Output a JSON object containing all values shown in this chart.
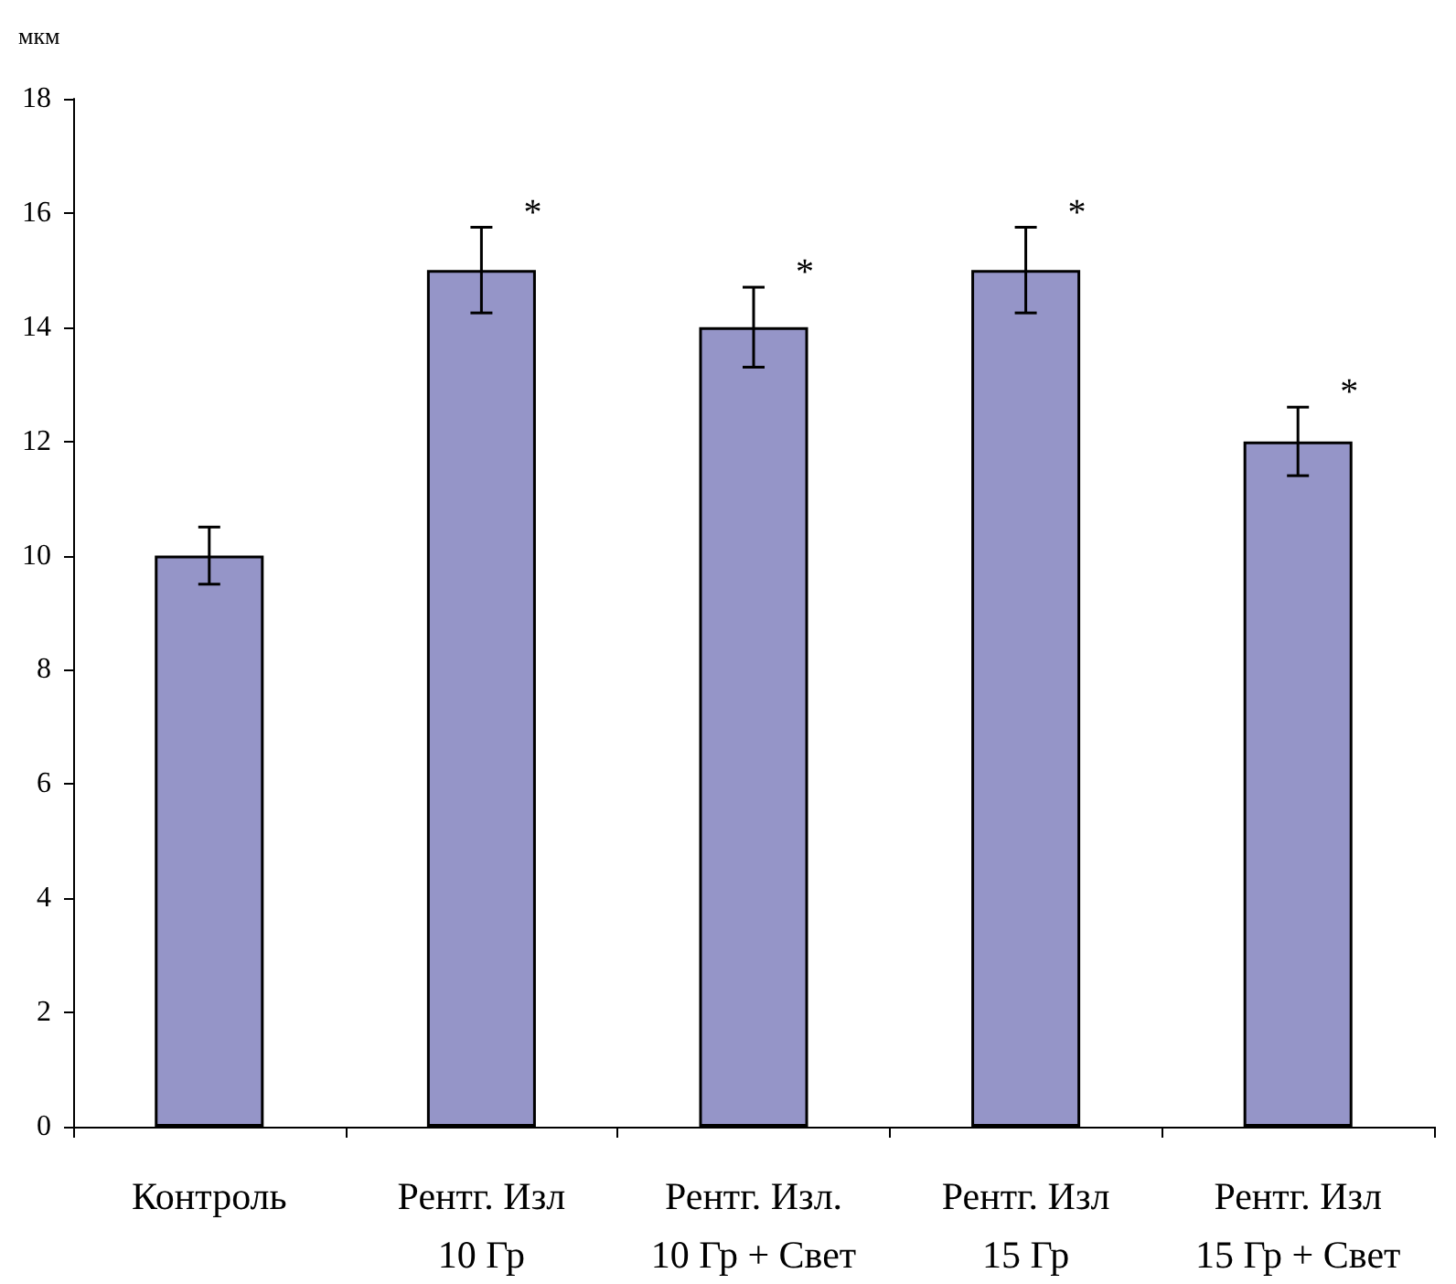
{
  "chart_data": {
    "type": "bar",
    "ylabel": "мкм",
    "categories": [
      "Контроль",
      "Рентг. Изл\n10 Гр",
      "Рентг. Изл.\n10 Гр + Свет",
      "Рентг. Изл\n15 Гр",
      "Рентг. Изл\n15 Гр + Свет"
    ],
    "values": [
      10,
      15,
      14,
      15,
      12
    ],
    "errors": [
      0.5,
      0.75,
      0.7,
      0.75,
      0.6
    ],
    "color": "#9595c8",
    "ylim": [
      0,
      18
    ],
    "yticks": [
      0,
      2,
      4,
      6,
      8,
      10,
      12,
      14,
      16,
      18
    ],
    "grid": false,
    "annotations": [
      {
        "text": "*",
        "x": "Рентг. Изл\n10 Гр",
        "y": 15.75
      },
      {
        "text": "*",
        "x": "Рентг. Изл.\n10 Гр + Свет",
        "y": 14.7
      },
      {
        "text": "*",
        "x": "Рентг. Изл\n15 Гр",
        "y": 15.75
      },
      {
        "text": "*",
        "x": "Рентг. Изл\n15 Гр + Свет",
        "y": 12.6
      }
    ]
  }
}
